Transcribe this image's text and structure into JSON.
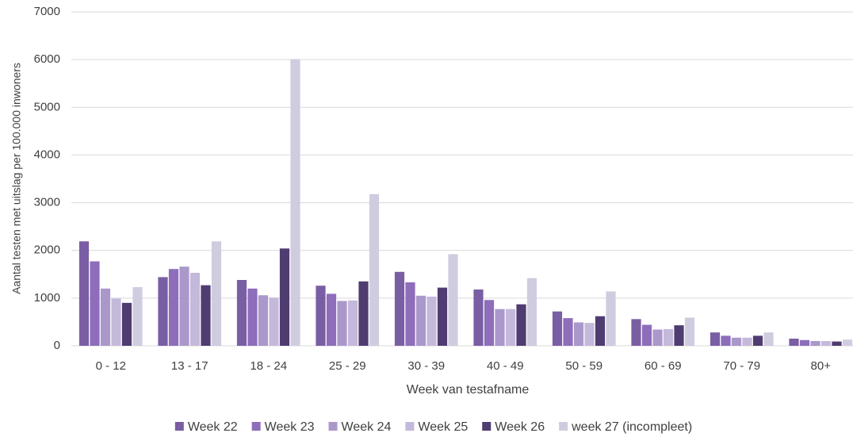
{
  "chart_data": {
    "type": "bar",
    "y_label": "Aantal testen met uitslag per 100.000 inwoners",
    "x_label": "Week van testafname",
    "categories": [
      "0 - 12",
      "13 - 17",
      "18 - 24",
      "25 - 29",
      "30 - 39",
      "40 - 49",
      "50 - 59",
      "60 - 69",
      "70 - 79",
      "80+"
    ],
    "series": [
      {
        "name": "Week 22",
        "color": "#7a5ea4",
        "values": [
          2190,
          1440,
          1380,
          1260,
          1550,
          1180,
          720,
          560,
          280,
          150
        ]
      },
      {
        "name": "Week 23",
        "color": "#8e6dbb",
        "values": [
          1770,
          1610,
          1200,
          1090,
          1330,
          960,
          580,
          440,
          210,
          120
        ]
      },
      {
        "name": "Week 24",
        "color": "#aa98cb",
        "values": [
          1200,
          1660,
          1060,
          940,
          1050,
          770,
          490,
          340,
          170,
          100
        ]
      },
      {
        "name": "Week 25",
        "color": "#c4b9db",
        "values": [
          990,
          1530,
          1010,
          950,
          1030,
          770,
          480,
          350,
          170,
          100
        ]
      },
      {
        "name": "Week 26",
        "color": "#4f3c70",
        "values": [
          900,
          1270,
          2040,
          1350,
          1220,
          870,
          620,
          430,
          210,
          90
        ]
      },
      {
        "name": "week 27 (incompleet)",
        "color": "#d0cce0",
        "values": [
          1230,
          2190,
          6010,
          3180,
          1920,
          1420,
          1140,
          590,
          280,
          130
        ]
      }
    ],
    "ylim": [
      0,
      7000
    ],
    "yticks": [
      0,
      1000,
      2000,
      3000,
      4000,
      5000,
      6000,
      7000
    ],
    "grid": true,
    "legend": "bottom"
  }
}
